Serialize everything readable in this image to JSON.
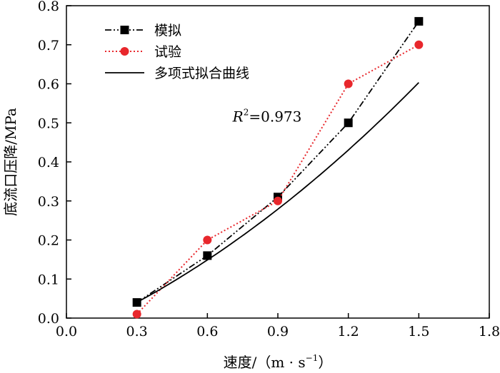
{
  "chart_data": {
    "type": "line",
    "xlabel": "速度/（m · s",
    "xlabel_sup": "−1",
    "xlabel_close": "）",
    "ylabel": "底流口压降/MPa",
    "xlim": [
      0.0,
      1.8
    ],
    "ylim": [
      0.0,
      0.8
    ],
    "xticks": [
      "0.0",
      "0.3",
      "0.6",
      "0.9",
      "1.2",
      "1.5",
      "1.8"
    ],
    "yticks": [
      "0.0",
      "0.1",
      "0.2",
      "0.3",
      "0.4",
      "0.5",
      "0.6",
      "0.7",
      "0.8"
    ],
    "grid": false,
    "legend_position": "top-left",
    "annotation": {
      "base": "R",
      "sup": "2",
      "text": "=0.973",
      "x": 0.75,
      "y": 0.5
    },
    "series": [
      {
        "name": "模拟",
        "color": "#000000",
        "marker": "square",
        "line": "dash-dot-dot",
        "x": [
          0.3,
          0.6,
          0.9,
          1.2,
          1.5
        ],
        "y": [
          0.04,
          0.16,
          0.31,
          0.5,
          0.76
        ]
      },
      {
        "name": "试验",
        "color": "#e8272c",
        "marker": "circle",
        "line": "dotted",
        "x": [
          0.3,
          0.6,
          0.9,
          1.2,
          1.5
        ],
        "y": [
          0.01,
          0.2,
          0.3,
          0.6,
          0.7
        ]
      },
      {
        "name": "多项式拟合曲线",
        "color": "#000000",
        "marker": "none",
        "line": "solid",
        "fit": {
          "type": "poly2",
          "a": 0.119,
          "b": 0.255,
          "c": -0.047
        },
        "x_range": [
          0.3,
          1.5
        ]
      }
    ]
  }
}
